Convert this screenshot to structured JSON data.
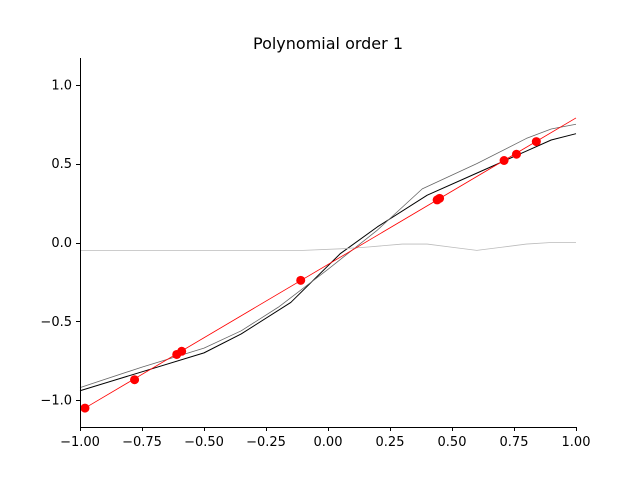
{
  "chart_data": {
    "type": "line",
    "title": "Polynomial order 1",
    "xlabel": "",
    "ylabel": "",
    "xlim": [
      -1.0,
      1.0
    ],
    "ylim": [
      -1.17,
      1.17
    ],
    "grid": false,
    "xticks": [
      -1.0,
      -0.75,
      -0.5,
      -0.25,
      0.0,
      0.25,
      0.5,
      0.75,
      1.0
    ],
    "xtick_labels": [
      "−1.00",
      "−0.75",
      "−0.50",
      "−0.25",
      "0.00",
      "0.25",
      "0.50",
      "0.75",
      "1.00"
    ],
    "yticks": [
      -1.0,
      -0.5,
      0.0,
      0.5,
      1.0
    ],
    "ytick_labels": [
      "−1.0",
      "−0.5",
      "0.0",
      "0.5",
      "1.0"
    ],
    "series": [
      {
        "kind": "line",
        "color": "#000000",
        "width": 1.0,
        "x": [
          -1.0,
          -0.75,
          -0.5,
          -0.35,
          -0.15,
          0.05,
          0.2,
          0.4,
          0.6,
          0.8,
          0.9,
          1.0
        ],
        "y": [
          -0.94,
          -0.82,
          -0.7,
          -0.58,
          -0.38,
          -0.07,
          0.1,
          0.3,
          0.44,
          0.58,
          0.65,
          0.69
        ]
      },
      {
        "kind": "line",
        "color": "#666666",
        "width": 0.8,
        "x": [
          -1.0,
          -0.75,
          -0.5,
          -0.35,
          -0.2,
          0.0,
          0.2,
          0.38,
          0.6,
          0.8,
          0.9,
          1.0
        ],
        "y": [
          -0.92,
          -0.79,
          -0.67,
          -0.56,
          -0.41,
          -0.17,
          0.08,
          0.34,
          0.5,
          0.66,
          0.72,
          0.75
        ]
      },
      {
        "kind": "line",
        "color": "#bbbbbb",
        "width": 0.8,
        "x": [
          -1.0,
          -0.75,
          -0.5,
          -0.25,
          -0.1,
          0.05,
          0.15,
          0.3,
          0.4,
          0.5,
          0.6,
          0.7,
          0.8,
          0.9,
          1.0
        ],
        "y": [
          -0.05,
          -0.05,
          -0.05,
          -0.05,
          -0.05,
          -0.04,
          -0.03,
          -0.01,
          -0.01,
          -0.03,
          -0.05,
          -0.03,
          -0.01,
          0.0,
          0.0
        ]
      },
      {
        "kind": "line",
        "color": "#ff0000",
        "width": 0.8,
        "x": [
          -0.98,
          1.0
        ],
        "y": [
          -1.05,
          0.79
        ]
      },
      {
        "kind": "scatter",
        "color": "#ff0000",
        "radius": 4.5,
        "x": [
          -0.98,
          -0.78,
          -0.61,
          -0.59,
          -0.11,
          0.44,
          0.45,
          0.71,
          0.76,
          0.84
        ],
        "y": [
          -1.05,
          -0.87,
          -0.71,
          -0.69,
          -0.24,
          0.27,
          0.28,
          0.52,
          0.56,
          0.64
        ]
      }
    ]
  }
}
